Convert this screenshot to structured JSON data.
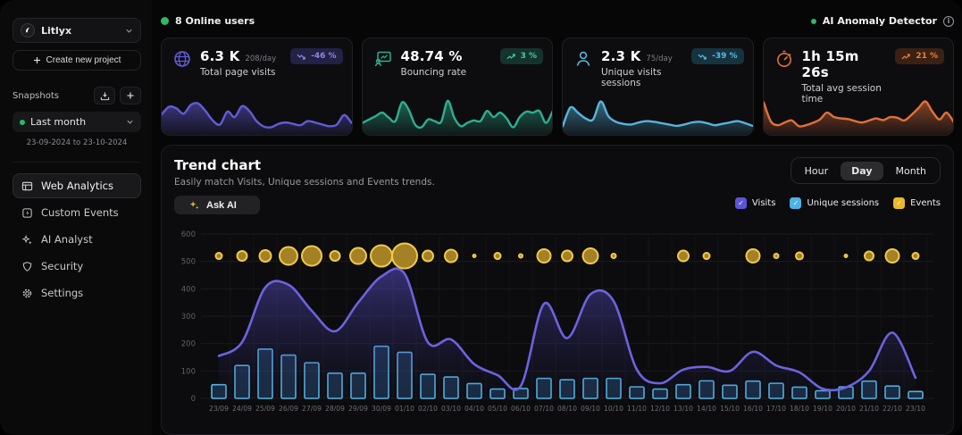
{
  "sidebar": {
    "project_name": "Litlyx",
    "create_project_label": "Create new project",
    "snapshots": {
      "label": "Snapshots",
      "selected": "Last month",
      "range": "23-09-2024 to 23-10-2024"
    },
    "menu": [
      {
        "label": "Web Analytics"
      },
      {
        "label": "Custom Events"
      },
      {
        "label": "AI Analyst"
      },
      {
        "label": "Security"
      },
      {
        "label": "Settings"
      }
    ]
  },
  "topbar": {
    "online_users": "8 Online users",
    "anomaly_detector": "AI Anomaly Detector"
  },
  "stat_cards": [
    {
      "value": "6.3 K",
      "per_day": "208/day",
      "label": "Total page visits",
      "badge": "-46 %",
      "trend": "down",
      "color": "#625bd8",
      "badge_bg": "#232144",
      "badge_fg": "#8f88e8",
      "spark": [
        50,
        72,
        68,
        52,
        78,
        82,
        60,
        32,
        20,
        58,
        42,
        74,
        60,
        30,
        14,
        12,
        22,
        26,
        22,
        18,
        30,
        26,
        20,
        15,
        20,
        48,
        25
      ]
    },
    {
      "value": "48.74 %",
      "per_day": "",
      "label": "Bouncing rate",
      "badge": "3 %",
      "trend": "up",
      "color": "#2fae8e",
      "badge_bg": "#15332c",
      "badge_fg": "#3ecfa5",
      "spark": [
        25,
        35,
        45,
        55,
        40,
        30,
        85,
        65,
        20,
        12,
        35,
        30,
        28,
        90,
        40,
        15,
        25,
        32,
        30,
        60,
        42,
        55,
        38,
        12,
        42,
        58,
        55,
        60,
        25,
        58
      ]
    },
    {
      "value": "2.3 K",
      "per_day": "75/day",
      "label": "Unique visits sessions",
      "badge": "-39 %",
      "trend": "down",
      "color": "#58b4dc",
      "badge_bg": "#16333f",
      "badge_fg": "#58bfe8",
      "spark": [
        15,
        70,
        55,
        38,
        35,
        88,
        45,
        28,
        22,
        20,
        26,
        30,
        28,
        24,
        20,
        16,
        20,
        26,
        28,
        24,
        18,
        22,
        26,
        30,
        24,
        16
      ]
    },
    {
      "value": "1h 15m 26s",
      "per_day": "",
      "label": "Total avg session time",
      "badge": "21 %",
      "trend": "up",
      "color": "#e1703a",
      "badge_bg": "#3a2113",
      "badge_fg": "#e8813c",
      "spark": [
        85,
        30,
        18,
        26,
        32,
        15,
        18,
        25,
        35,
        55,
        42,
        38,
        36,
        30,
        26,
        32,
        38,
        33,
        42,
        40,
        32,
        48,
        68,
        88,
        58,
        35,
        55,
        28
      ]
    }
  ],
  "trend": {
    "title": "Trend chart",
    "subtitle": "Easily match Visits, Unique sessions and Events trends.",
    "ask_ai_label": "Ask AI",
    "tabs": [
      "Hour",
      "Day",
      "Month"
    ],
    "active_tab": "Day",
    "legend": [
      {
        "label": "Visits",
        "color": "#5b54d8"
      },
      {
        "label": "Unique sessions",
        "color": "#4ab3ea"
      },
      {
        "label": "Events",
        "color": "#eab829"
      }
    ]
  },
  "chart_data": {
    "type": "line+bar+bubble",
    "categories": [
      "23/09",
      "24/09",
      "25/09",
      "26/09",
      "27/09",
      "28/09",
      "29/09",
      "30/09",
      "01/10",
      "02/10",
      "03/10",
      "04/10",
      "05/10",
      "06/10",
      "07/10",
      "08/10",
      "09/10",
      "10/10",
      "11/10",
      "12/10",
      "13/10",
      "14/10",
      "15/10",
      "16/10",
      "17/10",
      "18/10",
      "19/10",
      "20/10",
      "21/10",
      "22/10",
      "23/10"
    ],
    "ylim": [
      0,
      600
    ],
    "yticks": [
      0,
      100,
      200,
      300,
      400,
      500,
      600
    ],
    "grid": true,
    "series": [
      {
        "name": "Visits",
        "type": "area-line",
        "color": "#6c63e0",
        "values": [
          155,
          205,
          405,
          415,
          320,
          245,
          350,
          445,
          455,
          205,
          215,
          125,
          85,
          45,
          345,
          220,
          380,
          355,
          105,
          55,
          105,
          115,
          100,
          170,
          120,
          95,
          35,
          40,
          100,
          240,
          75
        ]
      },
      {
        "name": "Unique sessions",
        "type": "bar",
        "color": "#56b6e8",
        "values": [
          50,
          120,
          180,
          158,
          130,
          92,
          92,
          190,
          168,
          88,
          78,
          54,
          34,
          36,
          73,
          68,
          73,
          73,
          42,
          34,
          50,
          64,
          48,
          63,
          55,
          41,
          28,
          42,
          63,
          45,
          25
        ]
      },
      {
        "name": "Events",
        "type": "bubble",
        "color": "#d9a932",
        "bubble_row_y": 520,
        "bubble_radius_px": [
          3.5,
          5.5,
          6.5,
          10,
          11,
          5.5,
          9,
          12,
          14,
          6,
          7,
          1.5,
          3.5,
          2,
          7.5,
          6,
          8.5,
          2.5,
          0,
          0,
          6,
          3.5,
          0,
          7.5,
          2.5,
          4,
          0,
          1.5,
          5,
          7.5,
          3.5
        ]
      }
    ]
  }
}
